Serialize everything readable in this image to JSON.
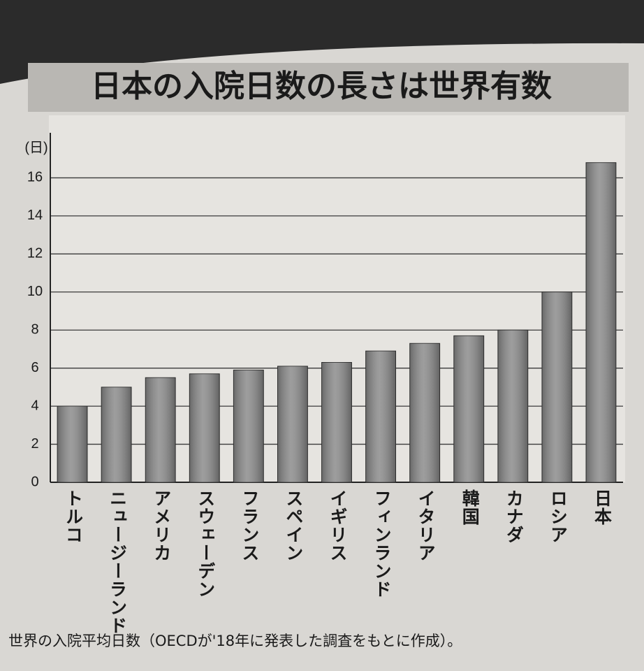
{
  "chart_data": {
    "type": "bar",
    "title": "日本の入院日数の長さは世界有数",
    "y_label": "(日)",
    "caption": "世界の入院平均日数（OECDが'18年に発表した調査をもとに作成）。",
    "categories": [
      "トルコ",
      "ニュージーランド",
      "アメリカ",
      "スウェーデン",
      "フランス",
      "スペイン",
      "イギリス",
      "フィンランド",
      "イタリア",
      "韓国",
      "カナダ",
      "ロシア",
      "日本"
    ],
    "values": [
      4.0,
      5.0,
      5.5,
      5.7,
      5.9,
      6.1,
      6.3,
      6.9,
      7.3,
      7.7,
      8.0,
      10.0,
      16.8
    ],
    "color": "#8c8c8c",
    "ylim": [
      0,
      18
    ],
    "yticks": [
      0,
      2,
      4,
      6,
      8,
      10,
      12,
      14,
      16
    ],
    "grid": true
  }
}
